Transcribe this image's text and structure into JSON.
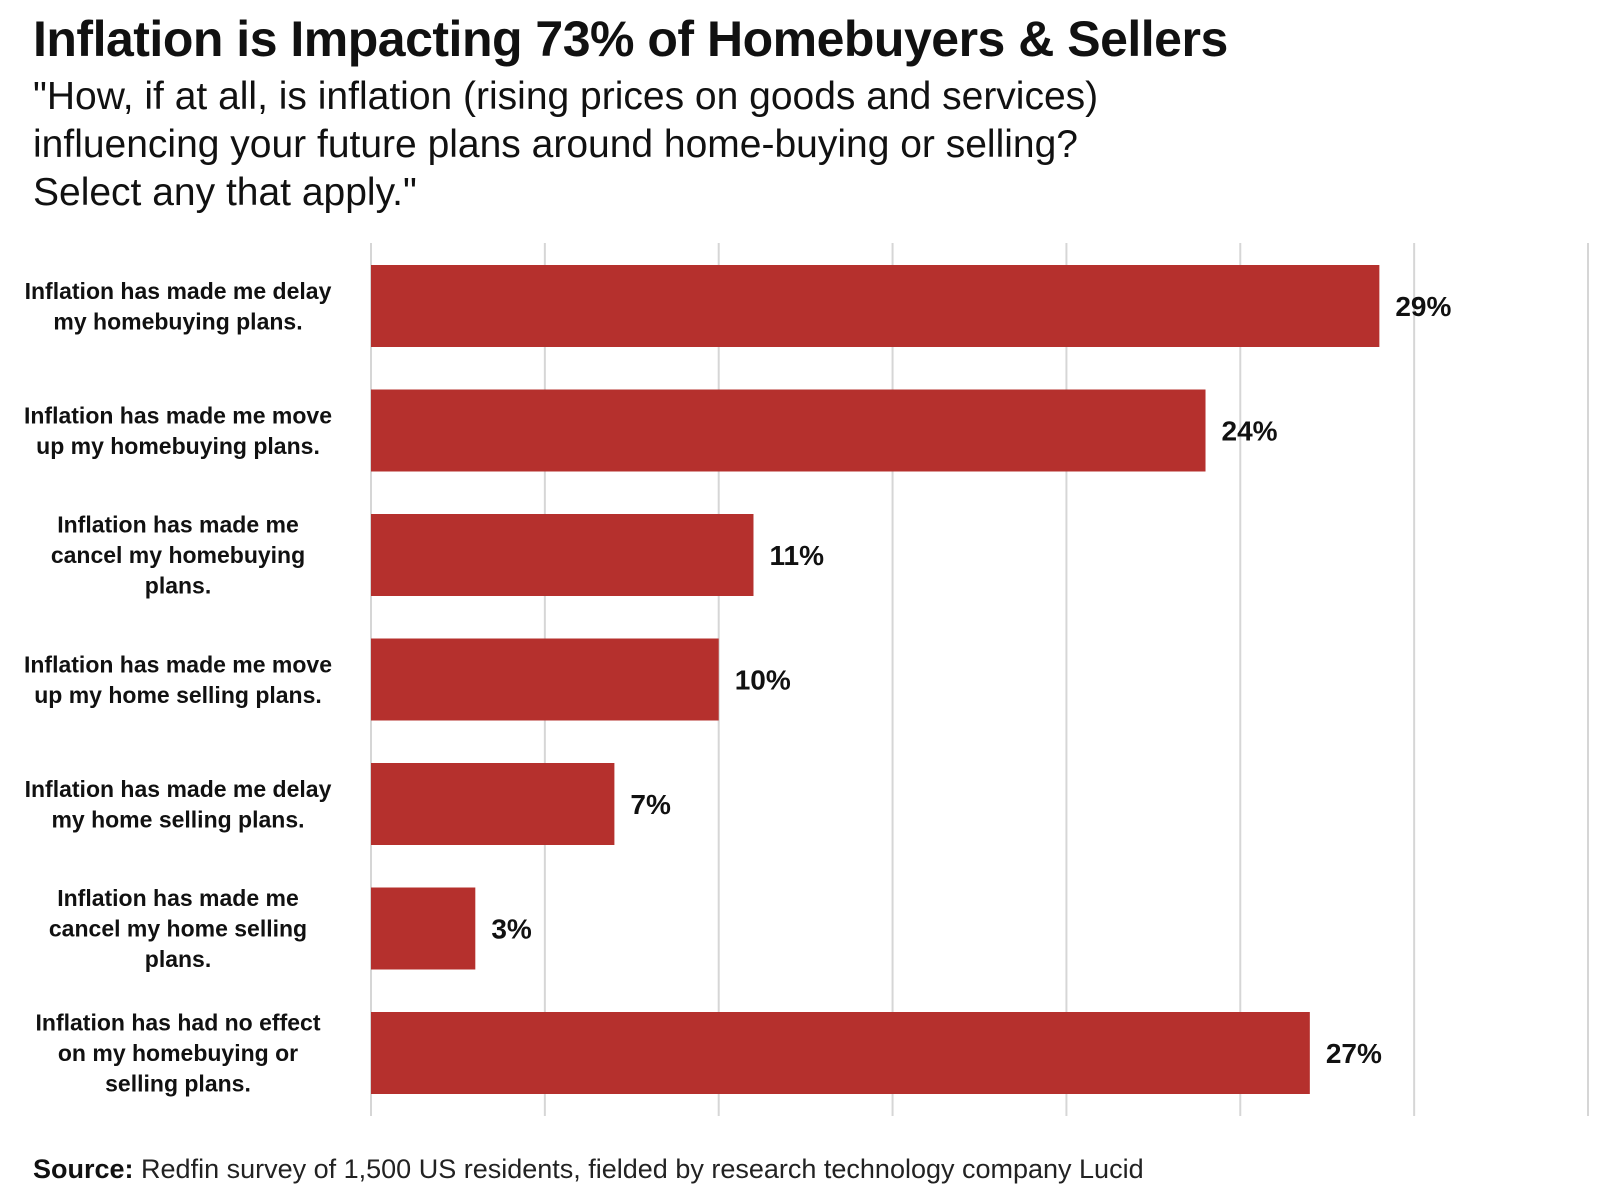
{
  "header": {
    "title": "Inflation is Impacting 73% of Homebuyers & Sellers",
    "subtitle": "\"How, if at all, is inflation (rising prices on goods and services)\ninfluencing your future plans around home-buying or selling?\nSelect any that apply.\""
  },
  "chart_data": {
    "type": "bar",
    "orientation": "horizontal",
    "categories": [
      [
        "Inflation has made me delay",
        "my homebuying plans."
      ],
      [
        "Inflation has made me move",
        "up my homebuying plans."
      ],
      [
        "Inflation has made me",
        "cancel my homebuying",
        "plans."
      ],
      [
        "Inflation has made me move",
        "up my home selling plans."
      ],
      [
        "Inflation has made me delay",
        "my home selling plans."
      ],
      [
        "Inflation has made me",
        "cancel my home selling",
        "plans."
      ],
      [
        "Inflation has had no effect",
        "on my homebuying or",
        "selling plans."
      ]
    ],
    "values": [
      29,
      24,
      11,
      10,
      7,
      3,
      27
    ],
    "value_labels": [
      "29%",
      "24%",
      "11%",
      "10%",
      "7%",
      "3%",
      "27%"
    ],
    "xlim": [
      0,
      35
    ],
    "grid_step": 5,
    "grid": true,
    "bar_color": "#b5302d",
    "grid_color": "#d6d6d6"
  },
  "footer": {
    "source_label": "Source:",
    "source_text": " Redfin survey of 1,500 US residents, fielded by research technology company Lucid"
  }
}
